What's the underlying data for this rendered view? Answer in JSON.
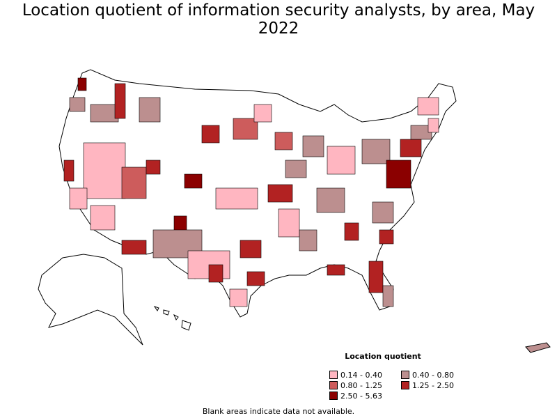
{
  "title": "Location quotient of information security analysts, by area, May 2022",
  "legend": {
    "title": "Location quotient",
    "items": [
      {
        "label": "0.14 - 0.40",
        "color": "#ffb6c1"
      },
      {
        "label": "0.40 - 0.80",
        "color": "#bc8f8f"
      },
      {
        "label": "0.80 - 1.25",
        "color": "#cd5c5c"
      },
      {
        "label": "1.25 - 2.50",
        "color": "#b22222"
      },
      {
        "label": "2.50 - 5.63",
        "color": "#8b0000"
      }
    ]
  },
  "footnote": "Blank areas indicate data not available.",
  "colors": {
    "border": "#000000",
    "no_data": "#ffffff"
  }
}
